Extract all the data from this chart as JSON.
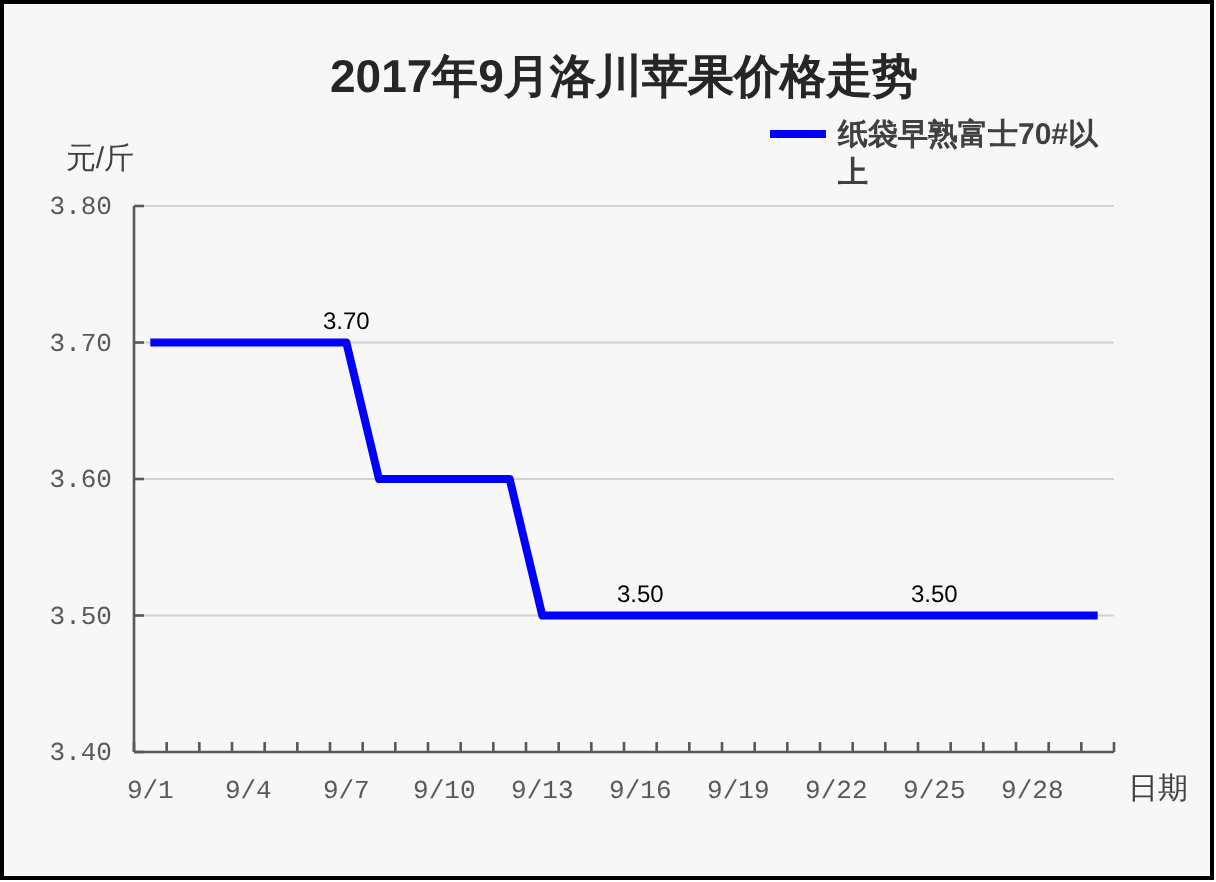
{
  "chart_data": {
    "type": "line",
    "title": "2017年9月洛川苹果价格走势",
    "xlabel": "日期",
    "ylabel": "元/斤",
    "categories": [
      "9/1",
      null,
      null,
      "9/4",
      null,
      null,
      "9/7",
      null,
      null,
      "9/10",
      null,
      null,
      "9/13",
      null,
      null,
      "9/16",
      null,
      null,
      "9/19",
      null,
      null,
      "9/22",
      null,
      null,
      "9/25",
      null,
      null,
      "9/28",
      null,
      null
    ],
    "series": [
      {
        "name": "纸袋早熟富士70#以上",
        "color": "#0000ff",
        "values": [
          3.7,
          3.7,
          3.7,
          3.7,
          3.7,
          3.7,
          3.7,
          3.6,
          3.6,
          3.6,
          3.6,
          3.6,
          3.5,
          3.5,
          3.5,
          3.5,
          3.5,
          3.5,
          3.5,
          3.5,
          3.5,
          3.5,
          3.5,
          3.5,
          3.5,
          3.5,
          3.5,
          3.5,
          3.5,
          3.5
        ],
        "value_labels": [
          null,
          null,
          null,
          null,
          null,
          null,
          "3.70",
          null,
          null,
          null,
          null,
          null,
          null,
          null,
          null,
          "3.50",
          null,
          null,
          null,
          null,
          null,
          null,
          null,
          null,
          "3.50",
          null,
          null,
          null,
          null,
          null
        ]
      }
    ],
    "ylim": [
      3.4,
      3.8
    ],
    "yticks": [
      {
        "value": 3.4,
        "label": "3.40"
      },
      {
        "value": 3.5,
        "label": "3.50"
      },
      {
        "value": 3.6,
        "label": "3.60"
      },
      {
        "value": 3.7,
        "label": "3.70"
      },
      {
        "value": 3.8,
        "label": "3.80"
      }
    ],
    "grid": "y",
    "legend": "top right",
    "line_style": "solid"
  }
}
